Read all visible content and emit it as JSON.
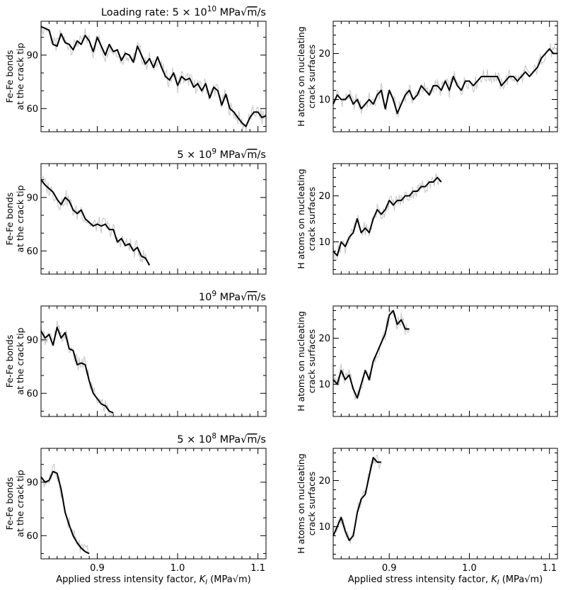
{
  "chart_data": {
    "type": "line",
    "layout": "4 rows x 2 columns of line plots, shared x axis per column",
    "xlabel": "Applied stress intensity factor, K_I (MPa√m)",
    "xlim": [
      0.83,
      1.11
    ],
    "xticks": [
      0.9,
      1.0,
      1.1
    ],
    "xtick_labels": [
      "0.9",
      "1.0",
      "1.1"
    ],
    "ylabel_left": [
      "Fe-Fe bonds",
      "at the crack tip"
    ],
    "ylabel_right": [
      "H atoms on nucleating",
      "crack surfaces"
    ],
    "colors": {
      "smoothed": "#000000",
      "raw": "#cccccc"
    },
    "rows": [
      {
        "title_prefix": "Loading rate: ",
        "title_rate": "5 × 10",
        "title_exp": "10",
        "title_unit_a": " MPa",
        "title_unit_b": "m",
        "title_unit_c": "/s",
        "left": {
          "ylim": [
            47,
            109
          ],
          "yticks": [
            60,
            90
          ],
          "ytick_labels": [
            "60",
            "90"
          ],
          "x": [
            0.83,
            0.84,
            0.845,
            0.85,
            0.855,
            0.86,
            0.865,
            0.87,
            0.875,
            0.88,
            0.885,
            0.89,
            0.895,
            0.9,
            0.905,
            0.91,
            0.915,
            0.92,
            0.925,
            0.93,
            0.935,
            0.94,
            0.945,
            0.95,
            0.955,
            0.96,
            0.965,
            0.97,
            0.975,
            0.98,
            0.985,
            0.99,
            0.995,
            1.0,
            1.005,
            1.01,
            1.015,
            1.02,
            1.025,
            1.03,
            1.035,
            1.04,
            1.045,
            1.05,
            1.055,
            1.06,
            1.065,
            1.07,
            1.075,
            1.08,
            1.085,
            1.09,
            1.095,
            1.1,
            1.105,
            1.11
          ],
          "y": [
            106,
            104,
            96,
            95,
            102,
            97,
            96,
            93,
            98,
            96,
            101,
            98,
            92,
            100,
            95,
            90,
            96,
            92,
            93,
            87,
            91,
            90,
            86,
            95,
            90,
            85,
            88,
            83,
            89,
            83,
            78,
            76,
            80,
            73,
            78,
            76,
            77,
            72,
            74,
            70,
            74,
            66,
            72,
            70,
            62,
            68,
            60,
            58,
            55,
            52,
            50,
            55,
            58,
            58,
            55,
            56
          ]
        },
        "right": {
          "ylim": [
            3,
            27
          ],
          "yticks": [
            10,
            20
          ],
          "ytick_labels": [
            "10",
            "20"
          ],
          "x": [
            0.83,
            0.835,
            0.84,
            0.845,
            0.85,
            0.855,
            0.86,
            0.865,
            0.87,
            0.875,
            0.88,
            0.885,
            0.89,
            0.895,
            0.9,
            0.905,
            0.91,
            0.915,
            0.92,
            0.925,
            0.93,
            0.935,
            0.94,
            0.945,
            0.95,
            0.955,
            0.96,
            0.965,
            0.97,
            0.975,
            0.98,
            0.985,
            0.99,
            0.995,
            1.0,
            1.005,
            1.01,
            1.015,
            1.02,
            1.025,
            1.03,
            1.035,
            1.04,
            1.045,
            1.05,
            1.055,
            1.06,
            1.065,
            1.07,
            1.075,
            1.08,
            1.085,
            1.09,
            1.095,
            1.1,
            1.105,
            1.11
          ],
          "y": [
            9,
            11,
            10,
            10,
            11,
            9,
            10,
            8,
            9,
            10,
            9,
            11,
            12,
            8,
            12,
            10,
            7,
            9,
            11,
            12,
            10,
            11,
            13,
            12,
            11,
            13,
            13,
            12,
            14,
            12,
            15,
            13,
            12,
            14,
            14,
            13,
            14,
            15,
            15,
            15,
            15,
            15,
            13,
            14,
            15,
            15,
            14,
            15,
            16,
            15,
            16,
            17,
            19,
            20,
            21,
            20,
            20
          ]
        }
      },
      {
        "title_prefix": "",
        "title_rate": "5 × 10",
        "title_exp": "9",
        "title_unit_a": " MPa",
        "title_unit_b": "m",
        "title_unit_c": "/s",
        "left": {
          "ylim": [
            47,
            109
          ],
          "yticks": [
            60,
            90
          ],
          "ytick_labels": [
            "60",
            "90"
          ],
          "x": [
            0.83,
            0.835,
            0.84,
            0.845,
            0.85,
            0.855,
            0.86,
            0.865,
            0.87,
            0.875,
            0.88,
            0.885,
            0.89,
            0.895,
            0.9,
            0.905,
            0.91,
            0.915,
            0.92,
            0.925,
            0.93,
            0.935,
            0.94,
            0.945,
            0.95,
            0.955,
            0.96,
            0.965
          ],
          "y": [
            100,
            97,
            95,
            93,
            89,
            86,
            90,
            88,
            83,
            81,
            83,
            78,
            76,
            74,
            75,
            74,
            75,
            72,
            72,
            65,
            67,
            63,
            64,
            60,
            62,
            57,
            56,
            52
          ]
        },
        "right": {
          "ylim": [
            3,
            27
          ],
          "yticks": [
            10,
            20
          ],
          "ytick_labels": [
            "10",
            "20"
          ],
          "x": [
            0.83,
            0.835,
            0.84,
            0.845,
            0.85,
            0.855,
            0.86,
            0.865,
            0.87,
            0.875,
            0.88,
            0.885,
            0.89,
            0.895,
            0.9,
            0.905,
            0.91,
            0.915,
            0.92,
            0.925,
            0.93,
            0.935,
            0.94,
            0.945,
            0.95,
            0.955,
            0.96,
            0.965
          ],
          "y": [
            8,
            7,
            10,
            9,
            11,
            12,
            15,
            12,
            13,
            12,
            15,
            17,
            16,
            17,
            19,
            18,
            19,
            19,
            20,
            20,
            21,
            21,
            22,
            22,
            23,
            23,
            24,
            23
          ]
        }
      },
      {
        "title_prefix": "",
        "title_rate": "10",
        "title_exp": "9",
        "title_unit_a": " MPa",
        "title_unit_b": "m",
        "title_unit_c": "/s",
        "left": {
          "ylim": [
            47,
            109
          ],
          "yticks": [
            60,
            90
          ],
          "ytick_labels": [
            "60",
            "90"
          ],
          "x": [
            0.83,
            0.835,
            0.84,
            0.845,
            0.85,
            0.855,
            0.86,
            0.865,
            0.87,
            0.875,
            0.88,
            0.885,
            0.89,
            0.895,
            0.9,
            0.905,
            0.91,
            0.915,
            0.92
          ],
          "y": [
            95,
            91,
            93,
            87,
            97,
            91,
            94,
            85,
            84,
            76,
            77,
            76,
            67,
            60,
            57,
            54,
            53,
            50,
            49
          ]
        },
        "right": {
          "ylim": [
            3,
            27
          ],
          "yticks": [
            10,
            20
          ],
          "ytick_labels": [
            "10",
            "20"
          ],
          "x": [
            0.83,
            0.835,
            0.84,
            0.845,
            0.85,
            0.855,
            0.86,
            0.865,
            0.87,
            0.875,
            0.88,
            0.885,
            0.89,
            0.895,
            0.9,
            0.905,
            0.91,
            0.915,
            0.92,
            0.925
          ],
          "y": [
            11,
            10,
            13,
            11,
            12,
            9,
            7,
            10,
            13,
            11,
            15,
            17,
            19,
            21,
            25,
            26,
            23,
            24,
            22,
            22
          ]
        }
      },
      {
        "title_prefix": "",
        "title_rate": "5 × 10",
        "title_exp": "8",
        "title_unit_a": " MPa",
        "title_unit_b": "m",
        "title_unit_c": "/s",
        "left": {
          "ylim": [
            47,
            109
          ],
          "yticks": [
            60,
            90
          ],
          "ytick_labels": [
            "60",
            "90"
          ],
          "x": [
            0.83,
            0.835,
            0.84,
            0.845,
            0.85,
            0.855,
            0.86,
            0.865,
            0.87,
            0.875,
            0.88,
            0.885,
            0.89
          ],
          "y": [
            93,
            90,
            91,
            96,
            95,
            86,
            73,
            66,
            60,
            56,
            53,
            51,
            50
          ]
        },
        "right": {
          "ylim": [
            3,
            27
          ],
          "yticks": [
            10,
            20
          ],
          "ytick_labels": [
            "10",
            "20"
          ],
          "x": [
            0.83,
            0.835,
            0.84,
            0.845,
            0.85,
            0.855,
            0.86,
            0.865,
            0.87,
            0.875,
            0.88,
            0.885,
            0.89
          ],
          "y": [
            8,
            10,
            12,
            9,
            7,
            8,
            13,
            16,
            17,
            21,
            25,
            24,
            24
          ]
        }
      }
    ]
  }
}
